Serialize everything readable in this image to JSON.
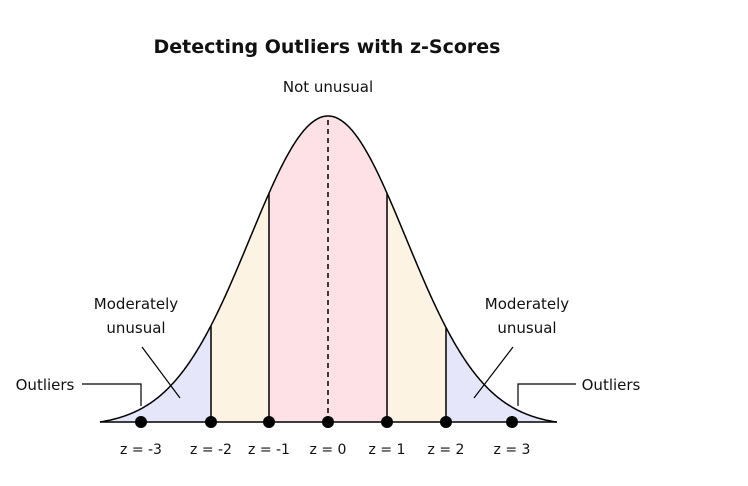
{
  "title": "Detecting Outliers with z-Scores",
  "center_label": "Not unusual",
  "left_moderate_label": [
    "Moderately",
    "unusual"
  ],
  "right_moderate_label": [
    "Moderately",
    "unusual"
  ],
  "left_outliers_label": "Outliers",
  "right_outliers_label": "Outliers",
  "z_points": [
    {
      "z": -3,
      "label": "z = -3"
    },
    {
      "z": -2,
      "label": "z = -2"
    },
    {
      "z": -1,
      "label": "z = -1"
    },
    {
      "z": 0,
      "label": "z = 0"
    },
    {
      "z": 1,
      "label": "z = 1"
    },
    {
      "z": 2,
      "label": "z = 2"
    },
    {
      "z": 3,
      "label": "z = 3"
    }
  ],
  "colors": {
    "not_unusual": "#fde1e6",
    "between_1_2": "#fdf3e3",
    "moderately_unusual": "#e6e6fb",
    "line": "#000000"
  }
}
